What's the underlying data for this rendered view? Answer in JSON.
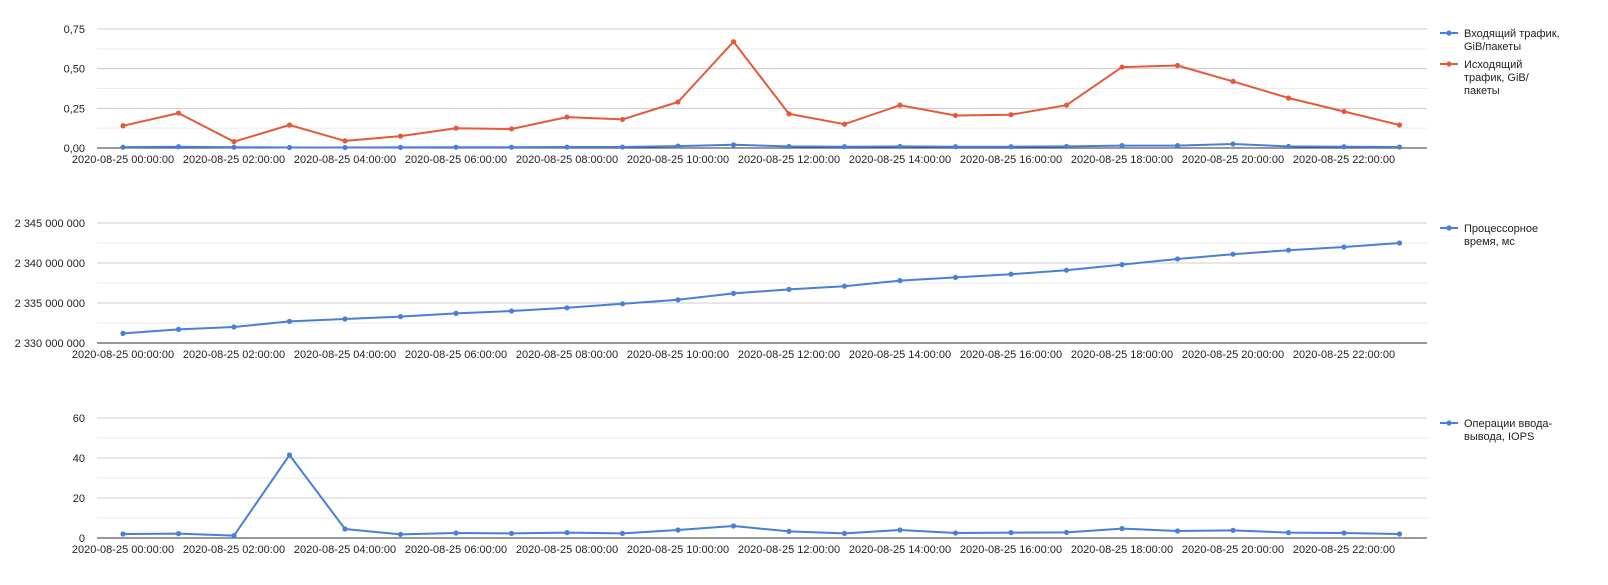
{
  "colors": {
    "blue": "#4a7fd8",
    "red": "#e5593a",
    "grid": "#cccccc",
    "axis": "#333333"
  },
  "chart_data": [
    {
      "type": "line",
      "x_labels": [
        "2020-08-25 00:00:00",
        "2020-08-25 02:00:00",
        "2020-08-25 04:00:00",
        "2020-08-25 06:00:00",
        "2020-08-25 08:00:00",
        "2020-08-25 10:00:00",
        "2020-08-25 12:00:00",
        "2020-08-25 14:00:00",
        "2020-08-25 16:00:00",
        "2020-08-25 18:00:00",
        "2020-08-25 20:00:00",
        "2020-08-25 22:00:00"
      ],
      "x_hours": [
        0,
        1,
        2,
        3,
        4,
        5,
        6,
        7,
        8,
        9,
        10,
        11,
        12,
        13,
        14,
        15,
        16,
        17,
        18,
        19,
        20,
        21,
        22,
        23
      ],
      "ylim": [
        0,
        0.75
      ],
      "yticks": [
        "0,00",
        "0,25",
        "0,50",
        "0,75"
      ],
      "series": [
        {
          "name": "Входящий трафик, GiB/пакеты",
          "color": "#4a7fd8",
          "values": [
            0.005,
            0.008,
            0.005,
            0.003,
            0.003,
            0.004,
            0.005,
            0.005,
            0.006,
            0.006,
            0.012,
            0.02,
            0.01,
            0.008,
            0.01,
            0.008,
            0.008,
            0.01,
            0.015,
            0.015,
            0.025,
            0.01,
            0.008,
            0.006
          ]
        },
        {
          "name": "Исходящий трафик, GiB/пакеты",
          "color": "#e5593a",
          "values": [
            0.14,
            0.22,
            0.04,
            0.145,
            0.045,
            0.075,
            0.125,
            0.12,
            0.195,
            0.18,
            0.29,
            0.67,
            0.215,
            0.15,
            0.27,
            0.205,
            0.21,
            0.27,
            0.51,
            0.52,
            0.42,
            0.315,
            0.23,
            0.145
          ]
        }
      ]
    },
    {
      "type": "line",
      "x_labels": [
        "2020-08-25 00:00:00",
        "2020-08-25 02:00:00",
        "2020-08-25 04:00:00",
        "2020-08-25 06:00:00",
        "2020-08-25 08:00:00",
        "2020-08-25 10:00:00",
        "2020-08-25 12:00:00",
        "2020-08-25 14:00:00",
        "2020-08-25 16:00:00",
        "2020-08-25 18:00:00",
        "2020-08-25 20:00:00",
        "2020-08-25 22:00:00"
      ],
      "x_hours": [
        0,
        1,
        2,
        3,
        4,
        5,
        6,
        7,
        8,
        9,
        10,
        11,
        12,
        13,
        14,
        15,
        16,
        17,
        18,
        19,
        20,
        21,
        22,
        23
      ],
      "ylim": [
        2330000000,
        2345000000
      ],
      "yticks": [
        "2 330 000 000",
        "2 335 000 000",
        "2 340 000 000",
        "2 345 000 000"
      ],
      "series": [
        {
          "name": "Процессорное время, мс",
          "color": "#4a7fd8",
          "values": [
            2331200000,
            2331700000,
            2332000000,
            2332700000,
            2333000000,
            2333300000,
            2333700000,
            2334000000,
            2334400000,
            2334900000,
            2335400000,
            2336200000,
            2336700000,
            2337100000,
            2337800000,
            2338200000,
            2338600000,
            2339100000,
            2339800000,
            2340500000,
            2341100000,
            2341600000,
            2342000000,
            2342500000
          ]
        }
      ]
    },
    {
      "type": "line",
      "x_labels": [
        "2020-08-25 00:00:00",
        "2020-08-25 02:00:00",
        "2020-08-25 04:00:00",
        "2020-08-25 06:00:00",
        "2020-08-25 08:00:00",
        "2020-08-25 10:00:00",
        "2020-08-25 12:00:00",
        "2020-08-25 14:00:00",
        "2020-08-25 16:00:00",
        "2020-08-25 18:00:00",
        "2020-08-25 20:00:00",
        "2020-08-25 22:00:00"
      ],
      "x_hours": [
        0,
        1,
        2,
        3,
        4,
        5,
        6,
        7,
        8,
        9,
        10,
        11,
        12,
        13,
        14,
        15,
        16,
        17,
        18,
        19,
        20,
        21,
        22,
        23
      ],
      "ylim": [
        0,
        60
      ],
      "yticks": [
        "0",
        "20",
        "40",
        "60"
      ],
      "series": [
        {
          "name": "Операции ввода-вывода, IOPS",
          "color": "#4a7fd8",
          "values": [
            2,
            2.2,
            1.2,
            41.5,
            4.5,
            1.8,
            2.5,
            2.3,
            2.7,
            2.3,
            4,
            6,
            3.3,
            2.3,
            4,
            2.5,
            2.7,
            2.8,
            4.7,
            3.5,
            3.8,
            2.7,
            2.5,
            2
          ]
        }
      ]
    }
  ]
}
